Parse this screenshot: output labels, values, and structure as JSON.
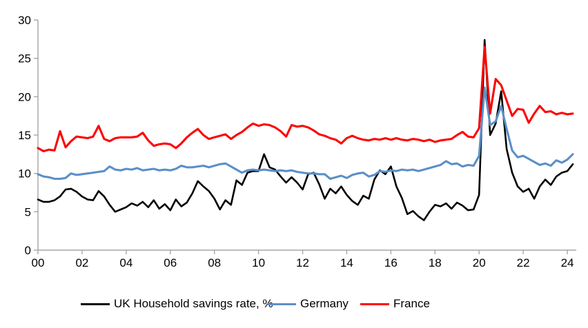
{
  "chart_data": {
    "type": "line",
    "title": "",
    "xlabel": "",
    "ylabel": "",
    "x_start_year": 2000,
    "x_frequency": "quarterly",
    "x_tick_labels": [
      "00",
      "02",
      "04",
      "06",
      "08",
      "10",
      "12",
      "14",
      "16",
      "18",
      "20",
      "22",
      "24"
    ],
    "x_tick_years": [
      0,
      2,
      4,
      6,
      8,
      10,
      12,
      14,
      16,
      18,
      20,
      22,
      24
    ],
    "y_tick_labels": [
      "0",
      "5",
      "10",
      "15",
      "20",
      "25",
      "30"
    ],
    "y_tick_values": [
      0,
      5,
      10,
      15,
      20,
      25,
      30
    ],
    "ylim": [
      0,
      30
    ],
    "xlim_years": [
      0,
      24.5
    ],
    "grid": false,
    "legend_position": "bottom",
    "axis_color": "#a6a6a6",
    "series": [
      {
        "name": "UK Household savings rate, %",
        "color": "#000000",
        "stroke_width": 2.6,
        "values": [
          6.6,
          6.3,
          6.3,
          6.5,
          7.0,
          7.9,
          8.0,
          7.6,
          7.0,
          6.6,
          6.5,
          7.7,
          7.0,
          5.9,
          5.0,
          5.3,
          5.6,
          6.1,
          5.8,
          6.3,
          5.6,
          6.5,
          5.4,
          6.0,
          5.2,
          6.6,
          5.7,
          6.2,
          7.4,
          9.0,
          8.3,
          7.7,
          6.7,
          5.3,
          6.5,
          5.9,
          9.1,
          8.5,
          10.1,
          10.3,
          10.3,
          12.5,
          10.8,
          10.5,
          9.6,
          8.8,
          9.5,
          8.8,
          7.9,
          9.9,
          10.1,
          8.6,
          6.7,
          8.0,
          7.4,
          8.3,
          7.2,
          6.4,
          5.9,
          7.1,
          6.7,
          9.2,
          10.4,
          9.9,
          10.9,
          8.3,
          6.8,
          4.7,
          5.1,
          4.4,
          3.9,
          5.0,
          5.9,
          5.7,
          6.1,
          5.4,
          6.2,
          5.8,
          5.2,
          5.3,
          7.2,
          27.4,
          15.0,
          16.5,
          20.7,
          13.2,
          10.1,
          8.3,
          7.6,
          8.0,
          6.7,
          8.3,
          9.2,
          8.5,
          9.6,
          10.1,
          10.3,
          11.2
        ]
      },
      {
        "name": "Germany",
        "color": "#5b8fc8",
        "stroke_width": 3.1,
        "values": [
          9.9,
          9.6,
          9.5,
          9.3,
          9.3,
          9.4,
          10.0,
          9.8,
          9.9,
          10.0,
          10.1,
          10.2,
          10.3,
          10.9,
          10.5,
          10.4,
          10.6,
          10.5,
          10.7,
          10.4,
          10.5,
          10.6,
          10.4,
          10.5,
          10.4,
          10.6,
          11.0,
          10.8,
          10.8,
          10.9,
          11.0,
          10.8,
          11.0,
          11.2,
          11.3,
          10.9,
          10.5,
          10.1,
          10.4,
          10.5,
          10.4,
          10.5,
          10.4,
          10.3,
          10.4,
          10.3,
          10.4,
          10.2,
          10.1,
          10.0,
          10.0,
          9.9,
          9.9,
          9.3,
          9.5,
          9.7,
          9.4,
          9.8,
          10.0,
          10.1,
          9.6,
          9.8,
          10.3,
          10.2,
          10.4,
          10.3,
          10.5,
          10.4,
          10.5,
          10.3,
          10.5,
          10.7,
          10.9,
          11.1,
          11.6,
          11.2,
          11.3,
          10.9,
          11.1,
          11.0,
          12.3,
          21.2,
          16.3,
          16.8,
          18.8,
          15.8,
          13.0,
          12.1,
          12.3,
          11.9,
          11.5,
          11.1,
          11.3,
          11.0,
          11.7,
          11.4,
          11.8,
          12.5
        ]
      },
      {
        "name": "France",
        "color": "#ff0000",
        "stroke_width": 3.1,
        "values": [
          13.3,
          12.9,
          13.1,
          13.0,
          15.5,
          13.4,
          14.2,
          14.8,
          14.7,
          14.6,
          14.8,
          16.2,
          14.5,
          14.2,
          14.6,
          14.7,
          14.7,
          14.7,
          14.8,
          15.3,
          14.3,
          13.6,
          13.8,
          13.9,
          13.8,
          13.3,
          13.9,
          14.7,
          15.3,
          15.8,
          15.0,
          14.5,
          14.7,
          14.9,
          15.1,
          14.5,
          15.0,
          15.4,
          16.0,
          16.5,
          16.2,
          16.4,
          16.3,
          16.0,
          15.5,
          14.8,
          16.3,
          16.1,
          16.2,
          16.0,
          15.6,
          15.1,
          14.9,
          14.6,
          14.4,
          13.9,
          14.6,
          14.9,
          14.6,
          14.4,
          14.3,
          14.5,
          14.4,
          14.6,
          14.4,
          14.6,
          14.4,
          14.3,
          14.5,
          14.4,
          14.2,
          14.4,
          14.1,
          14.3,
          14.4,
          14.5,
          15.0,
          15.4,
          14.8,
          14.7,
          15.9,
          26.5,
          17.8,
          22.3,
          21.5,
          19.5,
          17.5,
          18.4,
          18.3,
          16.6,
          17.8,
          18.8,
          18.0,
          18.1,
          17.7,
          17.9,
          17.7,
          17.8
        ]
      }
    ]
  },
  "legend": {
    "items": [
      {
        "label": "UK Household savings rate, %",
        "color": "#000000"
      },
      {
        "label": "Germany",
        "color": "#5b8fc8"
      },
      {
        "label": "France",
        "color": "#ff0000"
      }
    ]
  }
}
